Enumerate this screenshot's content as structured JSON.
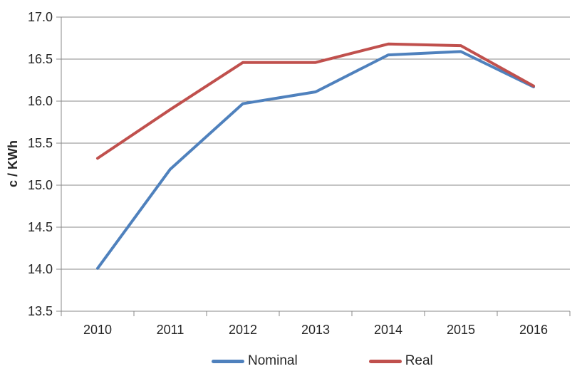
{
  "chart_data": {
    "type": "line",
    "categories": [
      "2010",
      "2011",
      "2012",
      "2013",
      "2014",
      "2015",
      "2016"
    ],
    "series": [
      {
        "name": "Nominal",
        "color": "#4F81BD",
        "values": [
          14.01,
          15.19,
          15.97,
          16.11,
          16.55,
          16.59,
          16.17
        ]
      },
      {
        "name": "Real",
        "color": "#C0504D",
        "values": [
          15.32,
          15.9,
          16.46,
          16.46,
          16.68,
          16.66,
          16.18
        ]
      }
    ],
    "title": "",
    "xlabel": "",
    "ylabel": "c / KWh",
    "ylim": [
      13.5,
      17.0
    ],
    "ytick_step": 0.5,
    "ytick_labels": [
      "13.5",
      "14.0",
      "14.5",
      "15.0",
      "15.5",
      "16.0",
      "16.5",
      "17.0"
    ],
    "grid": "horizontal",
    "legend_position": "bottom"
  },
  "colors": {
    "gridline": "#898989",
    "axis": "#898989",
    "text": "#262626",
    "background": "#FFFFFF"
  }
}
